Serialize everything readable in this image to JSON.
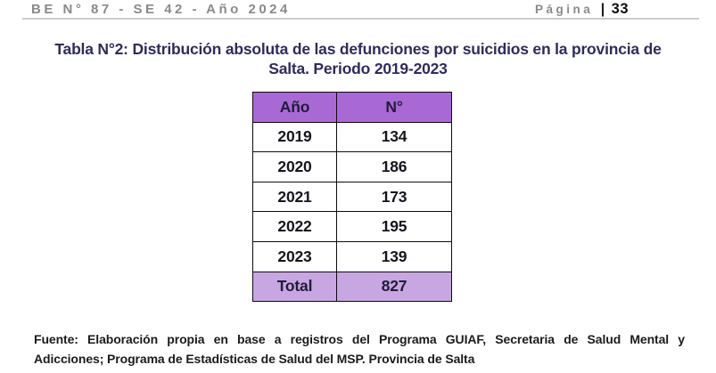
{
  "page_header": {
    "left": "BE N° 87 - SE 42 - Año 2024",
    "right_label": "Página",
    "right_separator": "|",
    "page_number": "33"
  },
  "title": {
    "line1": "Tabla N°2: Distribución absoluta de las defunciones por suicidios en la provincia de",
    "line2": "Salta. Periodo 2019-2023"
  },
  "table": {
    "headers": {
      "col1": "Año",
      "col2": "N°"
    },
    "rows": [
      {
        "ano": "2019",
        "n": "134"
      },
      {
        "ano": "2020",
        "n": "186"
      },
      {
        "ano": "2021",
        "n": "173"
      },
      {
        "ano": "2022",
        "n": "195"
      },
      {
        "ano": "2023",
        "n": "139"
      }
    ],
    "total": {
      "label": "Total",
      "value": "827"
    }
  },
  "footer": {
    "line1": "Fuente: Elaboración propia en base a registros del Programa GUIAF, Secretaria de Salud Mental y",
    "line2": "Adicciones; Programa de Estadísticas de Salud del MSP. Provincia de Salta"
  },
  "colors": {
    "header_bg": "#a869d5",
    "total_bg": "#c8a6e2",
    "title_color": "#302c58",
    "page_header_gray": "#8a8a8a",
    "rule_color": "#cccccc"
  }
}
